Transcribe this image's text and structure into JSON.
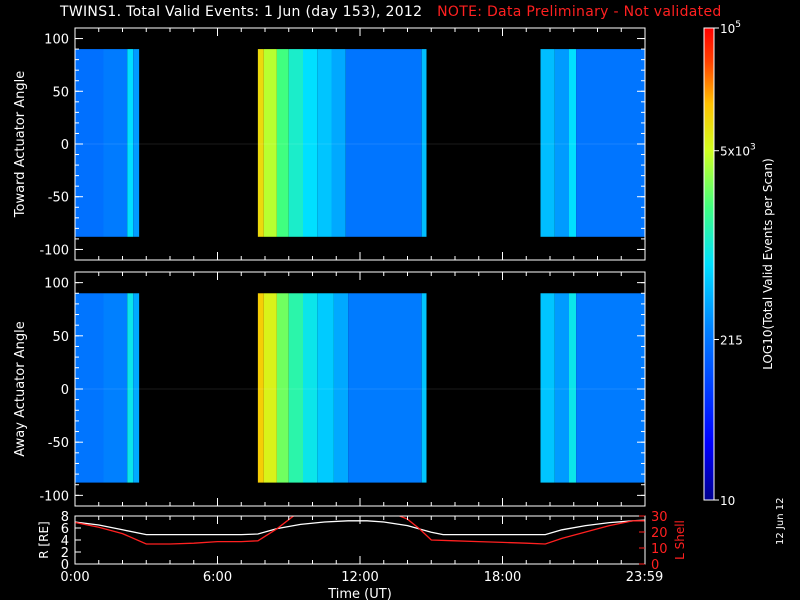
{
  "header": {
    "title": "TWINS1. Total Valid Events:  1 Jun (day 153), 2012",
    "note": "NOTE: Data Preliminary - Not validated"
  },
  "stamp": "12 Jun 12",
  "colors": {
    "background": "#000000",
    "axis": "#ffffff",
    "note": "#ff2020",
    "r_line": "#ffffff",
    "lshell_line": "#ff2020"
  },
  "chart_data": [
    {
      "type": "heatmap",
      "name": "toward-panel",
      "ylabel": "Toward Actuator Angle",
      "ylim": [
        -110,
        110
      ],
      "yticks": [
        "100",
        "50",
        "0",
        "-50",
        "-100"
      ],
      "ytick_values": [
        100,
        50,
        0,
        -50,
        -100
      ],
      "xlim": [
        0,
        24
      ],
      "data_angle_range": [
        -88,
        90
      ],
      "segments": [
        {
          "start": 0.0,
          "end": 2.7,
          "level": 0.38
        },
        {
          "start": 7.7,
          "end": 14.8,
          "level": 0.42
        },
        {
          "start": 19.6,
          "end": 24.0,
          "level": 0.38
        }
      ],
      "columns": [
        {
          "start": 0.0,
          "end": 1.2,
          "level": 0.33
        },
        {
          "start": 1.2,
          "end": 2.2,
          "level": 0.35
        },
        {
          "start": 2.2,
          "end": 2.45,
          "level": 0.5
        },
        {
          "start": 2.45,
          "end": 2.7,
          "level": 0.4
        },
        {
          "start": 7.7,
          "end": 7.95,
          "level": 0.8
        },
        {
          "start": 7.95,
          "end": 8.5,
          "level": 0.72
        },
        {
          "start": 8.5,
          "end": 9.0,
          "level": 0.62
        },
        {
          "start": 9.0,
          "end": 9.6,
          "level": 0.55
        },
        {
          "start": 9.6,
          "end": 10.2,
          "level": 0.5
        },
        {
          "start": 10.2,
          "end": 10.8,
          "level": 0.46
        },
        {
          "start": 10.8,
          "end": 11.4,
          "level": 0.42
        },
        {
          "start": 11.4,
          "end": 14.6,
          "level": 0.34
        },
        {
          "start": 14.6,
          "end": 14.8,
          "level": 0.45
        },
        {
          "start": 19.6,
          "end": 20.2,
          "level": 0.45
        },
        {
          "start": 20.2,
          "end": 20.8,
          "level": 0.4
        },
        {
          "start": 20.8,
          "end": 21.1,
          "level": 0.5
        },
        {
          "start": 21.1,
          "end": 24.0,
          "level": 0.34
        }
      ]
    },
    {
      "type": "heatmap",
      "name": "away-panel",
      "ylabel": "Away Actuator Angle",
      "ylim": [
        -110,
        110
      ],
      "yticks": [
        "100",
        "50",
        "0",
        "-50",
        "-100"
      ],
      "ytick_values": [
        100,
        50,
        0,
        -50,
        -100
      ],
      "xlim": [
        0,
        24
      ],
      "data_angle_range": [
        -88,
        90
      ],
      "columns": [
        {
          "start": 0.0,
          "end": 1.2,
          "level": 0.34
        },
        {
          "start": 1.2,
          "end": 2.2,
          "level": 0.36
        },
        {
          "start": 2.2,
          "end": 2.45,
          "level": 0.52
        },
        {
          "start": 2.45,
          "end": 2.7,
          "level": 0.42
        },
        {
          "start": 7.7,
          "end": 7.95,
          "level": 0.82
        },
        {
          "start": 7.95,
          "end": 8.5,
          "level": 0.76
        },
        {
          "start": 8.5,
          "end": 9.0,
          "level": 0.66
        },
        {
          "start": 9.0,
          "end": 9.6,
          "level": 0.58
        },
        {
          "start": 9.6,
          "end": 10.2,
          "level": 0.52
        },
        {
          "start": 10.2,
          "end": 10.9,
          "level": 0.47
        },
        {
          "start": 10.9,
          "end": 11.5,
          "level": 0.42
        },
        {
          "start": 11.5,
          "end": 14.6,
          "level": 0.35
        },
        {
          "start": 14.6,
          "end": 14.8,
          "level": 0.46
        },
        {
          "start": 19.6,
          "end": 20.2,
          "level": 0.46
        },
        {
          "start": 20.2,
          "end": 20.8,
          "level": 0.4
        },
        {
          "start": 20.8,
          "end": 21.1,
          "level": 0.52
        },
        {
          "start": 21.1,
          "end": 24.0,
          "level": 0.35
        }
      ]
    },
    {
      "type": "line",
      "name": "orbit-panel",
      "xlabel": "Time (UT)",
      "xticks": [
        "0:00",
        "6:00",
        "12:00",
        "18:00",
        "23:59"
      ],
      "xtick_values": [
        0,
        6,
        12,
        18,
        23.98
      ],
      "xlim": [
        0,
        24
      ],
      "left_axis": {
        "label": "R [RE]",
        "ylim": [
          0,
          8
        ],
        "yticks": [
          "8",
          "6",
          "4",
          "2",
          "0"
        ],
        "ytick_values": [
          8,
          6,
          4,
          2,
          0
        ]
      },
      "right_axis": {
        "label": "L Shell",
        "ylim": [
          0,
          30
        ],
        "yticks": [
          "30",
          "20",
          "10",
          "0"
        ],
        "ytick_values": [
          30,
          20,
          10,
          0
        ]
      },
      "series": [
        {
          "axis": "left",
          "color": "#ffffff",
          "x": [
            0,
            1,
            2,
            3,
            4,
            5,
            6,
            7,
            7.7,
            8.5,
            9.5,
            10.5,
            11.5,
            12.3,
            13,
            14,
            15,
            15.5,
            16,
            17,
            18,
            19,
            19.8,
            20.5,
            21.5,
            22.5,
            23.5,
            24
          ],
          "y": [
            7.0,
            6.5,
            5.7,
            4.9,
            4.9,
            4.9,
            4.9,
            4.9,
            5.0,
            5.9,
            6.6,
            7.0,
            7.2,
            7.2,
            7.0,
            6.4,
            5.3,
            4.9,
            4.9,
            4.9,
            4.9,
            4.9,
            4.9,
            5.7,
            6.4,
            6.9,
            7.2,
            7.3
          ]
        },
        {
          "axis": "right",
          "color": "#ff2020",
          "x": [
            0,
            1,
            2,
            3,
            4,
            5,
            6,
            7,
            7.7,
            8.5,
            9.2,
            9.5,
            13.5,
            14,
            14.5,
            15,
            16,
            17,
            18,
            19,
            19.8,
            20.5,
            21.5,
            22.5,
            23.5,
            24
          ],
          "y": [
            26,
            23,
            19,
            12.5,
            12.5,
            13,
            14,
            14,
            14.5,
            22,
            30,
            31,
            31,
            28,
            22,
            15,
            14.5,
            14,
            13.5,
            13,
            12.5,
            16,
            20,
            24,
            27,
            27
          ]
        }
      ]
    }
  ],
  "colorbar": {
    "label": "LOG10(Total Valid Events per Scan)",
    "ticks": [
      "10^5",
      "5x10^3",
      "215",
      "10"
    ],
    "tick_levels": [
      1.0,
      0.74,
      0.34,
      0.0
    ],
    "tick_label_main": [
      "10",
      "5x10",
      "215",
      "10"
    ],
    "tick_label_sup": [
      "5",
      "3",
      "",
      ""
    ]
  }
}
